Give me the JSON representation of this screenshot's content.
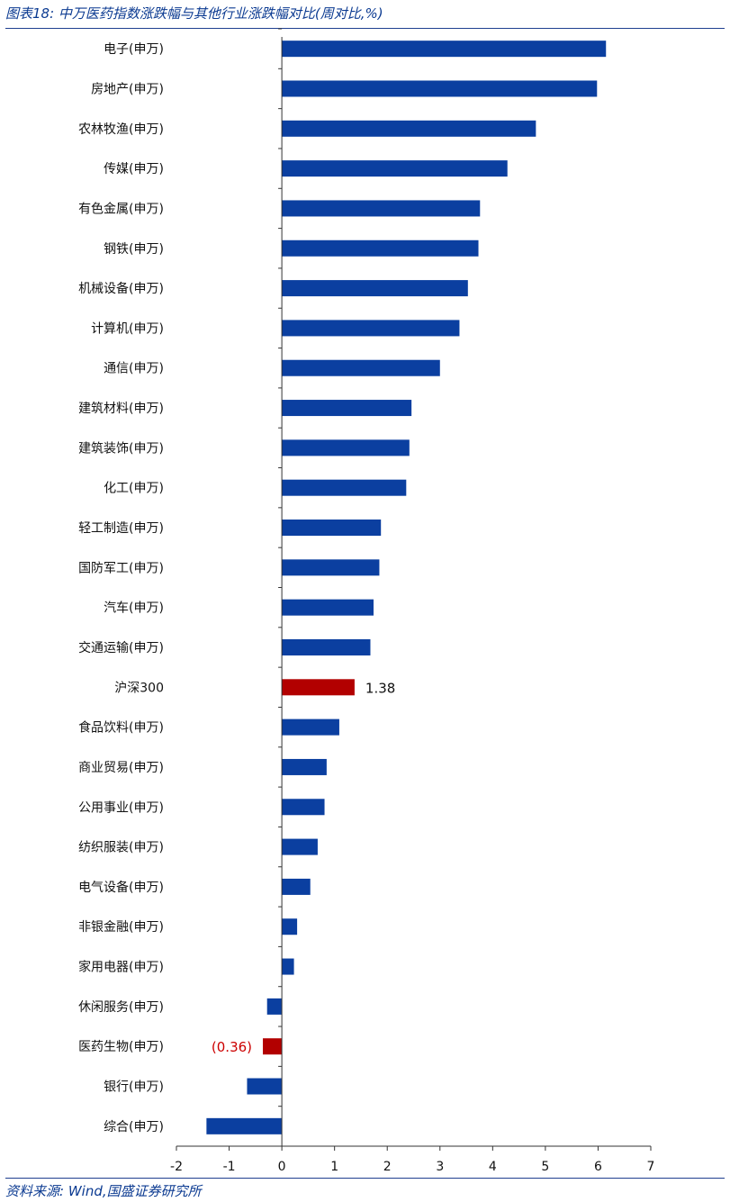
{
  "header": {
    "title": "图表18:  中万医药指数涨跌幅与其他行业涨跌幅对比(周对比,%)"
  },
  "footer": {
    "source": "资料来源: Wind,国盛证券研究所"
  },
  "colors": {
    "bar": "#0b3fa0",
    "highlight": "#b20000",
    "highlight_label": "#cc0000",
    "rule": "#1f3f8f",
    "text": "#0b3a91"
  },
  "chart_data": {
    "type": "bar",
    "orientation": "horizontal",
    "title": "中万医药指数涨跌幅与其他行业涨跌幅对比(周对比,%)",
    "xlabel": "",
    "ylabel": "",
    "xlim": [
      -2,
      7
    ],
    "xticks": [
      -2,
      -1,
      0,
      1,
      2,
      3,
      4,
      5,
      6,
      7
    ],
    "grid": false,
    "legend": "none",
    "categories": [
      "电子(申万)",
      "房地产(申万)",
      "农林牧渔(申万)",
      "传媒(申万)",
      "有色金属(申万)",
      "钢铁(申万)",
      "机械设备(申万)",
      "计算机(申万)",
      "通信(申万)",
      "建筑材料(申万)",
      "建筑装饰(申万)",
      "化工(申万)",
      "轻工制造(申万)",
      "国防军工(申万)",
      "汽车(申万)",
      "交通运输(申万)",
      "沪深300",
      "食品饮料(申万)",
      "商业贸易(申万)",
      "公用事业(申万)",
      "纺织服装(申万)",
      "电气设备(申万)",
      "非银金融(申万)",
      "家用电器(申万)",
      "休闲服务(申万)",
      "医药生物(申万)",
      "银行(申万)",
      "综合(申万)"
    ],
    "values": [
      6.15,
      5.98,
      4.82,
      4.28,
      3.76,
      3.73,
      3.53,
      3.37,
      3.0,
      2.46,
      2.42,
      2.36,
      1.88,
      1.85,
      1.74,
      1.68,
      1.38,
      1.09,
      0.85,
      0.81,
      0.68,
      0.54,
      0.29,
      0.23,
      -0.28,
      -0.36,
      -0.66,
      -1.43
    ],
    "highlighted": [
      "沪深300",
      "医药生物(申万)"
    ],
    "data_labels": [
      {
        "category": "沪深300",
        "text": "1.38"
      },
      {
        "category": "医药生物(申万)",
        "text": "(0.36)"
      }
    ]
  }
}
